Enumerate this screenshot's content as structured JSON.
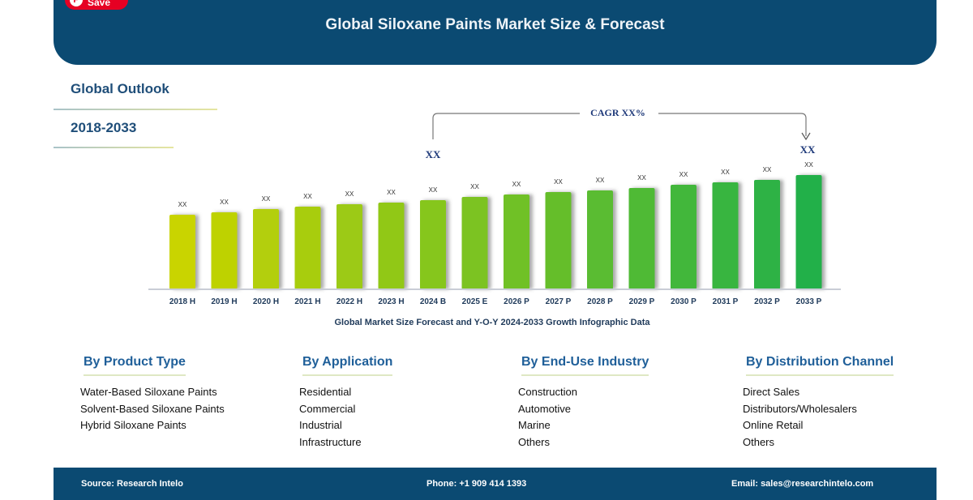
{
  "save_button": {
    "label": "Save",
    "icon": "pinterest-icon",
    "color": "#e60023"
  },
  "header": {
    "title": "Global Siloxane Paints Market Size & Forecast",
    "color": "#0b4a72"
  },
  "sidebar": {
    "outlook": "Global Outlook",
    "period": "2018-2033"
  },
  "chart_data": {
    "type": "bar",
    "categories": [
      "2018 H",
      "2019 H",
      "2020 H",
      "2021 H",
      "2022 H",
      "2023 H",
      "2024 B",
      "2025 E",
      "2026 P",
      "2027 P",
      "2028 P",
      "2029 P",
      "2030 P",
      "2031 P",
      "2032 P",
      "2033 P"
    ],
    "values": [
      92,
      95,
      99,
      102,
      105,
      107,
      110,
      114,
      117,
      120,
      122,
      125,
      129,
      132,
      135,
      141
    ],
    "data_labels": [
      "XX",
      "XX",
      "XX",
      "XX",
      "XX",
      "XX",
      "XX",
      "XX",
      "XX",
      "XX",
      "XX",
      "XX",
      "XX",
      "XX",
      "XX",
      "XX"
    ],
    "title": "",
    "caption": "Global Market Size Forecast and Y-O-Y 2024-2033 Growth Infographic Data",
    "annotation": {
      "label": "CAGR XX%",
      "start_label": "XX",
      "end_label": "XX",
      "from": "2024 B",
      "to": "2033 P"
    },
    "colors": {
      "start": "#c9d400",
      "end": "#22b04a"
    },
    "grid": false
  },
  "segments": [
    {
      "title": "By Product Type",
      "items": [
        "Water-Based Siloxane Paints",
        "Solvent-Based Siloxane Paints",
        "Hybrid Siloxane Paints"
      ]
    },
    {
      "title": "By Application",
      "items": [
        "Residential",
        "Commercial",
        "Industrial",
        "Infrastructure"
      ]
    },
    {
      "title": "By End-Use Industry",
      "items": [
        "Construction",
        "Automotive",
        "Marine",
        "Others"
      ]
    },
    {
      "title": "By Distribution Channel",
      "items": [
        "Direct Sales",
        "Distributors/Wholesalers",
        "Online Retail",
        "Others"
      ]
    }
  ],
  "footer": {
    "source": "Source: Research Intelo",
    "phone": "Phone: +1 909 414 1393",
    "email": "Email: sales@researchintelo.com"
  }
}
